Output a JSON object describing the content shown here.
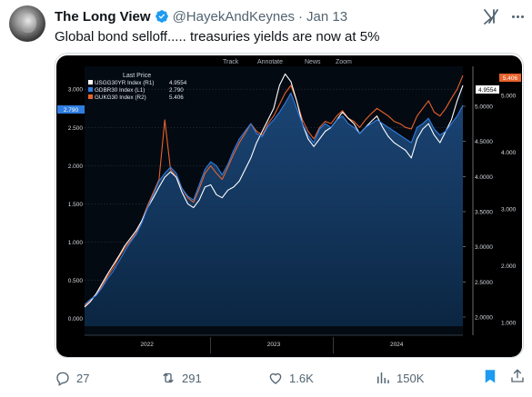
{
  "post": {
    "author_name": "The Long View",
    "handle": "@HayekAndKeynes",
    "separator": "·",
    "date": "Jan 13",
    "text": "Global bond selloff..... treasuries yields are now at 5%"
  },
  "chart_toolbar": {
    "track": "Track",
    "annotate": "Annotate",
    "news": "News",
    "zoom": "Zoom"
  },
  "legend": {
    "title": "Last Price",
    "entries": [
      {
        "label": "USGG30YR Index  (R1)",
        "value": "4.9554",
        "color": "#ffffff"
      },
      {
        "label": "GDBR30 Index  (L1)",
        "value": "2.790",
        "color": "#2f7de1"
      },
      {
        "label": "GUKG30 Index  (R2)",
        "value": "5.406",
        "color": "#e8622c"
      }
    ]
  },
  "chart_data": {
    "type": "line",
    "x_ticks": [
      "2022",
      "2023",
      "2024"
    ],
    "y_left": {
      "ticks": [
        "0.000",
        "0.500",
        "1.000",
        "1.500",
        "2.000",
        "2.500",
        "3.000"
      ],
      "range": [
        -0.1,
        3.3
      ]
    },
    "y_right_1": {
      "ticks": [
        "2.0000",
        "2.5000",
        "3.0000",
        "3.5000",
        "4.0000",
        "4.5000",
        "5.0000"
      ]
    },
    "y_right_2": {
      "ticks": [
        "1.000",
        "2.000",
        "3.000",
        "4.000",
        "5.000"
      ]
    },
    "last_value_tags": {
      "left": "2.790",
      "right_1": "4.9554",
      "right_2": "5.406"
    },
    "series": [
      {
        "name": "GDBR30 Index (L1)",
        "color": "#2f7de1",
        "values": [
          0.18,
          0.25,
          0.3,
          0.4,
          0.52,
          0.62,
          0.75,
          0.88,
          1.0,
          1.1,
          1.25,
          1.45,
          1.62,
          1.8,
          1.9,
          1.98,
          1.9,
          1.7,
          1.6,
          1.55,
          1.75,
          1.95,
          2.05,
          2.0,
          1.88,
          2.02,
          2.2,
          2.35,
          2.45,
          2.55,
          2.42,
          2.38,
          2.52,
          2.6,
          2.7,
          2.82,
          2.95,
          2.75,
          2.55,
          2.4,
          2.3,
          2.48,
          2.55,
          2.5,
          2.6,
          2.65,
          2.55,
          2.5,
          2.42,
          2.5,
          2.55,
          2.6,
          2.55,
          2.5,
          2.45,
          2.4,
          2.35,
          2.3,
          2.5,
          2.55,
          2.62,
          2.48,
          2.4,
          2.45,
          2.55,
          2.65,
          2.79
        ]
      },
      {
        "name": "USGG30YR Index (R1)",
        "color": "#ffffff",
        "values": [
          0.15,
          0.22,
          0.32,
          0.45,
          0.58,
          0.7,
          0.82,
          0.95,
          1.05,
          1.15,
          1.28,
          1.45,
          1.58,
          1.72,
          1.85,
          1.92,
          1.85,
          1.65,
          1.5,
          1.45,
          1.55,
          1.72,
          1.75,
          1.62,
          1.58,
          1.68,
          1.72,
          1.8,
          1.95,
          2.1,
          2.3,
          2.45,
          2.6,
          2.75,
          3.05,
          3.2,
          3.1,
          2.85,
          2.55,
          2.35,
          2.25,
          2.35,
          2.45,
          2.5,
          2.6,
          2.7,
          2.62,
          2.55,
          2.42,
          2.5,
          2.58,
          2.65,
          2.5,
          2.38,
          2.3,
          2.25,
          2.2,
          2.1,
          2.35,
          2.48,
          2.55,
          2.4,
          2.3,
          2.45,
          2.6,
          2.85,
          3.05
        ]
      },
      {
        "name": "GUKG30 Index (R2)",
        "color": "#e8622c",
        "values": [
          0.16,
          0.24,
          0.32,
          0.42,
          0.55,
          0.66,
          0.8,
          0.92,
          1.02,
          1.12,
          1.28,
          1.48,
          1.65,
          1.82,
          2.6,
          1.95,
          1.85,
          1.7,
          1.58,
          1.52,
          1.7,
          1.9,
          2.0,
          1.9,
          1.82,
          1.98,
          2.15,
          2.3,
          2.42,
          2.55,
          2.45,
          2.4,
          2.55,
          2.65,
          2.8,
          2.95,
          3.05,
          2.85,
          2.6,
          2.45,
          2.35,
          2.5,
          2.58,
          2.55,
          2.65,
          2.72,
          2.62,
          2.58,
          2.5,
          2.6,
          2.68,
          2.75,
          2.7,
          2.65,
          2.58,
          2.55,
          2.5,
          2.48,
          2.65,
          2.75,
          2.85,
          2.7,
          2.65,
          2.75,
          2.88,
          3.0,
          3.18
        ]
      }
    ]
  },
  "actions": {
    "replies": "27",
    "reposts": "291",
    "likes": "1.6K",
    "views": "150K"
  }
}
